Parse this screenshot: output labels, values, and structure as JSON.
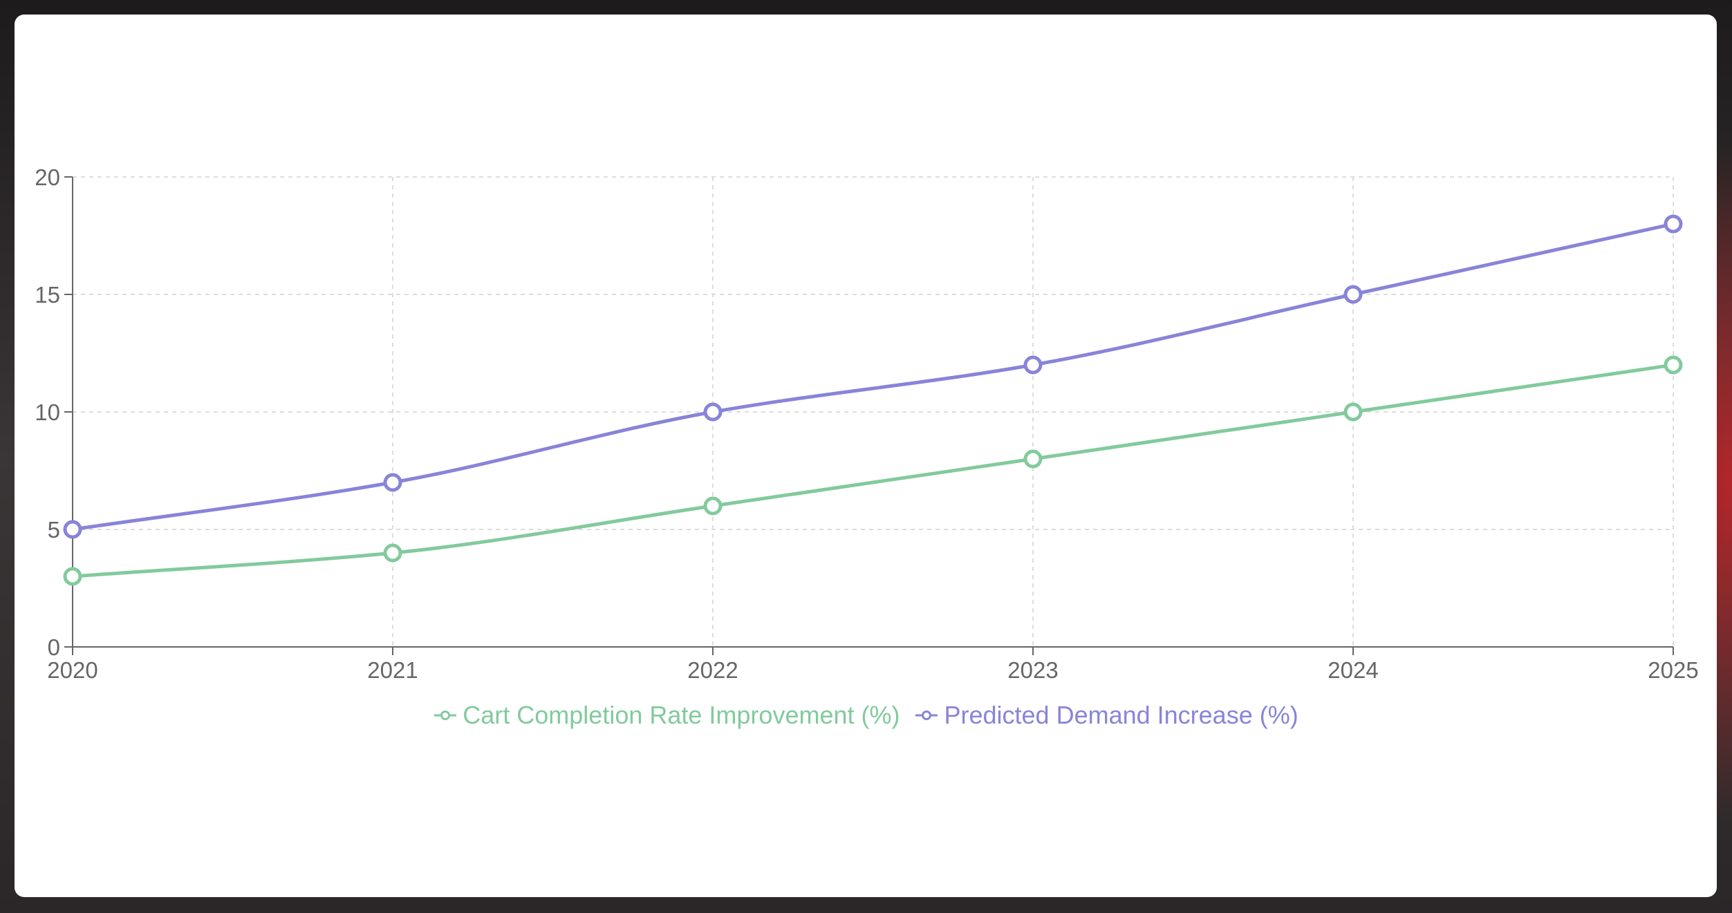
{
  "chart_data": {
    "type": "line",
    "title": "",
    "xlabel": "",
    "ylabel": "",
    "x": [
      "2020",
      "2021",
      "2022",
      "2023",
      "2024",
      "2025"
    ],
    "ylim": [
      0,
      20
    ],
    "yticks": [
      0,
      5,
      10,
      15,
      20
    ],
    "yticks_labels": [
      "0",
      "5",
      "10",
      "15",
      "20"
    ],
    "grid": true,
    "legend_position": "bottom",
    "series": [
      {
        "name": "Cart Completion Rate Improvement (%)",
        "color": "#82ca9d",
        "values": [
          3,
          4,
          6,
          8,
          10,
          12
        ]
      },
      {
        "name": "Predicted Demand Increase (%)",
        "color": "#8884d8",
        "values": [
          5,
          7,
          10,
          12,
          15,
          18
        ]
      }
    ]
  }
}
